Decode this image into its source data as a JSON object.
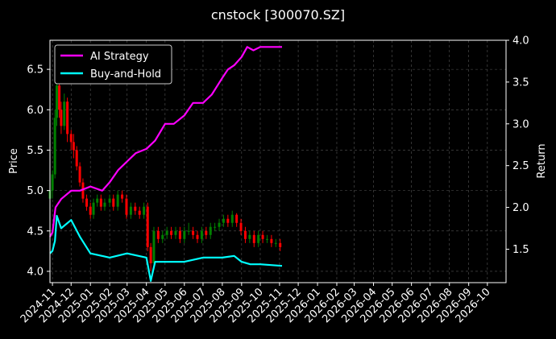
{
  "chart_data": {
    "type": "line",
    "title": "cnstock [300070.SZ]",
    "ylabel_left": "Price",
    "ylabel_right": "Return",
    "left_ylim": [
      3.86,
      6.86
    ],
    "right_ylim": [
      1.1,
      4.0
    ],
    "left_ticks": [
      "4.0",
      "4.5",
      "5.0",
      "5.5",
      "6.0",
      "6.5"
    ],
    "left_tick_values": [
      4.0,
      4.5,
      5.0,
      5.5,
      6.0,
      6.5
    ],
    "right_ticks": [
      "1.5",
      "2.0",
      "2.5",
      "3.0",
      "3.5",
      "4.0"
    ],
    "right_tick_values": [
      1.5,
      2.0,
      2.5,
      3.0,
      3.5,
      4.0
    ],
    "x_ticks": [
      "2024-11",
      "2024-12",
      "2025-01",
      "2025-02",
      "2025-03",
      "2025-04",
      "2025-05",
      "2025-06",
      "2025-07",
      "2025-08",
      "2025-09",
      "2025-10",
      "2025-11",
      "2025-12",
      "2026-01",
      "2026-02",
      "2026-03",
      "2026-04",
      "2026-05",
      "2026-06",
      "2026-07",
      "2026-08",
      "2026-09",
      "2026-10"
    ],
    "xlim": [
      "2024-10-28",
      "2026-10-31"
    ],
    "grid": true,
    "legend_position": "top-left",
    "series": [
      {
        "name": "AI Strategy",
        "color": "#ff00ff",
        "axis": "right",
        "x": [
          "2024-10-28",
          "2024-11-01",
          "2024-11-06",
          "2024-11-15",
          "2024-12-01",
          "2024-12-15",
          "2025-01-01",
          "2025-01-20",
          "2025-02-01",
          "2025-02-15",
          "2025-03-01",
          "2025-03-15",
          "2025-04-01",
          "2025-04-15",
          "2025-05-01",
          "2025-05-15",
          "2025-06-01",
          "2025-06-15",
          "2025-07-01",
          "2025-07-15",
          "2025-08-01",
          "2025-08-10",
          "2025-08-20",
          "2025-09-01",
          "2025-09-10",
          "2025-09-20",
          "2025-10-01",
          "2025-10-15",
          "2025-11-05"
        ],
        "values": [
          1.65,
          1.7,
          2.0,
          2.1,
          2.2,
          2.2,
          2.25,
          2.2,
          2.3,
          2.45,
          2.55,
          2.65,
          2.7,
          2.8,
          3.0,
          3.0,
          3.1,
          3.25,
          3.25,
          3.35,
          3.55,
          3.65,
          3.7,
          3.8,
          3.92,
          3.88,
          3.92,
          3.92,
          3.92
        ]
      },
      {
        "name": "Buy-and-Hold",
        "color": "#00ffff",
        "axis": "right",
        "x": [
          "2024-10-28",
          "2024-11-01",
          "2024-11-05",
          "2024-11-08",
          "2024-11-15",
          "2024-12-01",
          "2024-12-15",
          "2025-01-01",
          "2025-02-01",
          "2025-03-01",
          "2025-04-01",
          "2025-04-08",
          "2025-04-15",
          "2025-05-01",
          "2025-06-01",
          "2025-07-01",
          "2025-08-01",
          "2025-08-20",
          "2025-09-01",
          "2025-09-15",
          "2025-10-01",
          "2025-11-05"
        ],
        "values": [
          1.45,
          1.48,
          1.6,
          1.9,
          1.75,
          1.85,
          1.65,
          1.45,
          1.4,
          1.45,
          1.4,
          1.12,
          1.35,
          1.35,
          1.35,
          1.4,
          1.4,
          1.42,
          1.35,
          1.32,
          1.32,
          1.3
        ]
      }
    ],
    "candles": {
      "up_color": "#008000",
      "down_color": "#ff0000",
      "axis": "left",
      "x": [
        "2024-10-28",
        "2024-11-01",
        "2024-11-05",
        "2024-11-08",
        "2024-11-12",
        "2024-11-15",
        "2024-11-20",
        "2024-11-25",
        "2024-12-01",
        "2024-12-05",
        "2024-12-10",
        "2024-12-15",
        "2024-12-20",
        "2024-12-26",
        "2025-01-01",
        "2025-01-06",
        "2025-01-12",
        "2025-01-18",
        "2025-01-24",
        "2025-02-01",
        "2025-02-07",
        "2025-02-14",
        "2025-02-21",
        "2025-02-28",
        "2025-03-07",
        "2025-03-14",
        "2025-03-21",
        "2025-03-28",
        "2025-04-03",
        "2025-04-08",
        "2025-04-13",
        "2025-04-20",
        "2025-04-27",
        "2025-05-04",
        "2025-05-11",
        "2025-05-18",
        "2025-05-25",
        "2025-06-01",
        "2025-06-08",
        "2025-06-15",
        "2025-06-22",
        "2025-06-29",
        "2025-07-06",
        "2025-07-13",
        "2025-07-20",
        "2025-07-27",
        "2025-08-03",
        "2025-08-10",
        "2025-08-17",
        "2025-08-24",
        "2025-08-31",
        "2025-09-07",
        "2025-09-14",
        "2025-09-21",
        "2025-09-28",
        "2025-10-05",
        "2025-10-12",
        "2025-10-19",
        "2025-10-26",
        "2025-11-02"
      ],
      "open": [
        4.9,
        5.0,
        5.2,
        5.9,
        6.3,
        6.0,
        5.8,
        6.1,
        5.7,
        5.6,
        5.5,
        5.3,
        5.1,
        4.9,
        4.8,
        4.7,
        4.85,
        4.9,
        4.8,
        4.85,
        4.9,
        4.8,
        4.95,
        4.9,
        4.7,
        4.8,
        4.75,
        4.7,
        4.8,
        4.3,
        4.1,
        4.5,
        4.4,
        4.45,
        4.5,
        4.45,
        4.5,
        4.4,
        4.5,
        4.5,
        4.45,
        4.4,
        4.5,
        4.45,
        4.55,
        4.55,
        4.6,
        4.65,
        4.6,
        4.7,
        4.6,
        4.5,
        4.4,
        4.45,
        4.35,
        4.45,
        4.4,
        4.4,
        4.35,
        4.35
      ],
      "close": [
        5.0,
        5.2,
        5.9,
        6.3,
        6.0,
        5.8,
        6.1,
        5.7,
        5.6,
        5.5,
        5.3,
        5.1,
        4.9,
        4.8,
        4.7,
        4.85,
        4.9,
        4.8,
        4.85,
        4.9,
        4.8,
        4.95,
        4.9,
        4.7,
        4.8,
        4.75,
        4.7,
        4.8,
        4.3,
        4.1,
        4.5,
        4.4,
        4.45,
        4.5,
        4.45,
        4.5,
        4.4,
        4.5,
        4.5,
        4.45,
        4.4,
        4.5,
        4.45,
        4.55,
        4.55,
        4.6,
        4.65,
        4.6,
        4.7,
        4.6,
        4.5,
        4.4,
        4.45,
        4.35,
        4.45,
        4.4,
        4.4,
        4.35,
        4.35,
        4.3
      ],
      "high": [
        5.1,
        5.25,
        6.0,
        6.6,
        6.35,
        6.1,
        6.2,
        6.15,
        5.75,
        5.7,
        5.55,
        5.35,
        5.15,
        4.95,
        4.85,
        4.9,
        4.95,
        4.95,
        4.9,
        4.95,
        4.95,
        5.0,
        5.0,
        4.95,
        4.85,
        4.85,
        4.8,
        4.85,
        4.85,
        4.35,
        4.55,
        4.55,
        4.5,
        4.55,
        4.55,
        4.55,
        4.55,
        4.55,
        4.6,
        4.55,
        4.5,
        4.55,
        4.55,
        4.6,
        4.6,
        4.65,
        4.7,
        4.7,
        4.75,
        4.72,
        4.65,
        4.55,
        4.5,
        4.5,
        4.5,
        4.5,
        4.45,
        4.45,
        4.4,
        4.4
      ],
      "low": [
        4.8,
        4.9,
        5.15,
        5.8,
        5.9,
        5.7,
        5.75,
        5.6,
        5.5,
        5.4,
        5.25,
        5.05,
        4.85,
        4.75,
        4.65,
        4.65,
        4.8,
        4.75,
        4.75,
        4.8,
        4.75,
        4.75,
        4.85,
        4.65,
        4.65,
        4.7,
        4.65,
        4.65,
        4.25,
        4.0,
        4.05,
        4.35,
        4.35,
        4.4,
        4.4,
        4.4,
        4.35,
        4.35,
        4.45,
        4.4,
        4.35,
        4.35,
        4.4,
        4.4,
        4.5,
        4.5,
        4.55,
        4.55,
        4.55,
        4.55,
        4.45,
        4.35,
        4.35,
        4.3,
        4.3,
        4.35,
        4.35,
        4.3,
        4.3,
        4.25
      ]
    }
  }
}
